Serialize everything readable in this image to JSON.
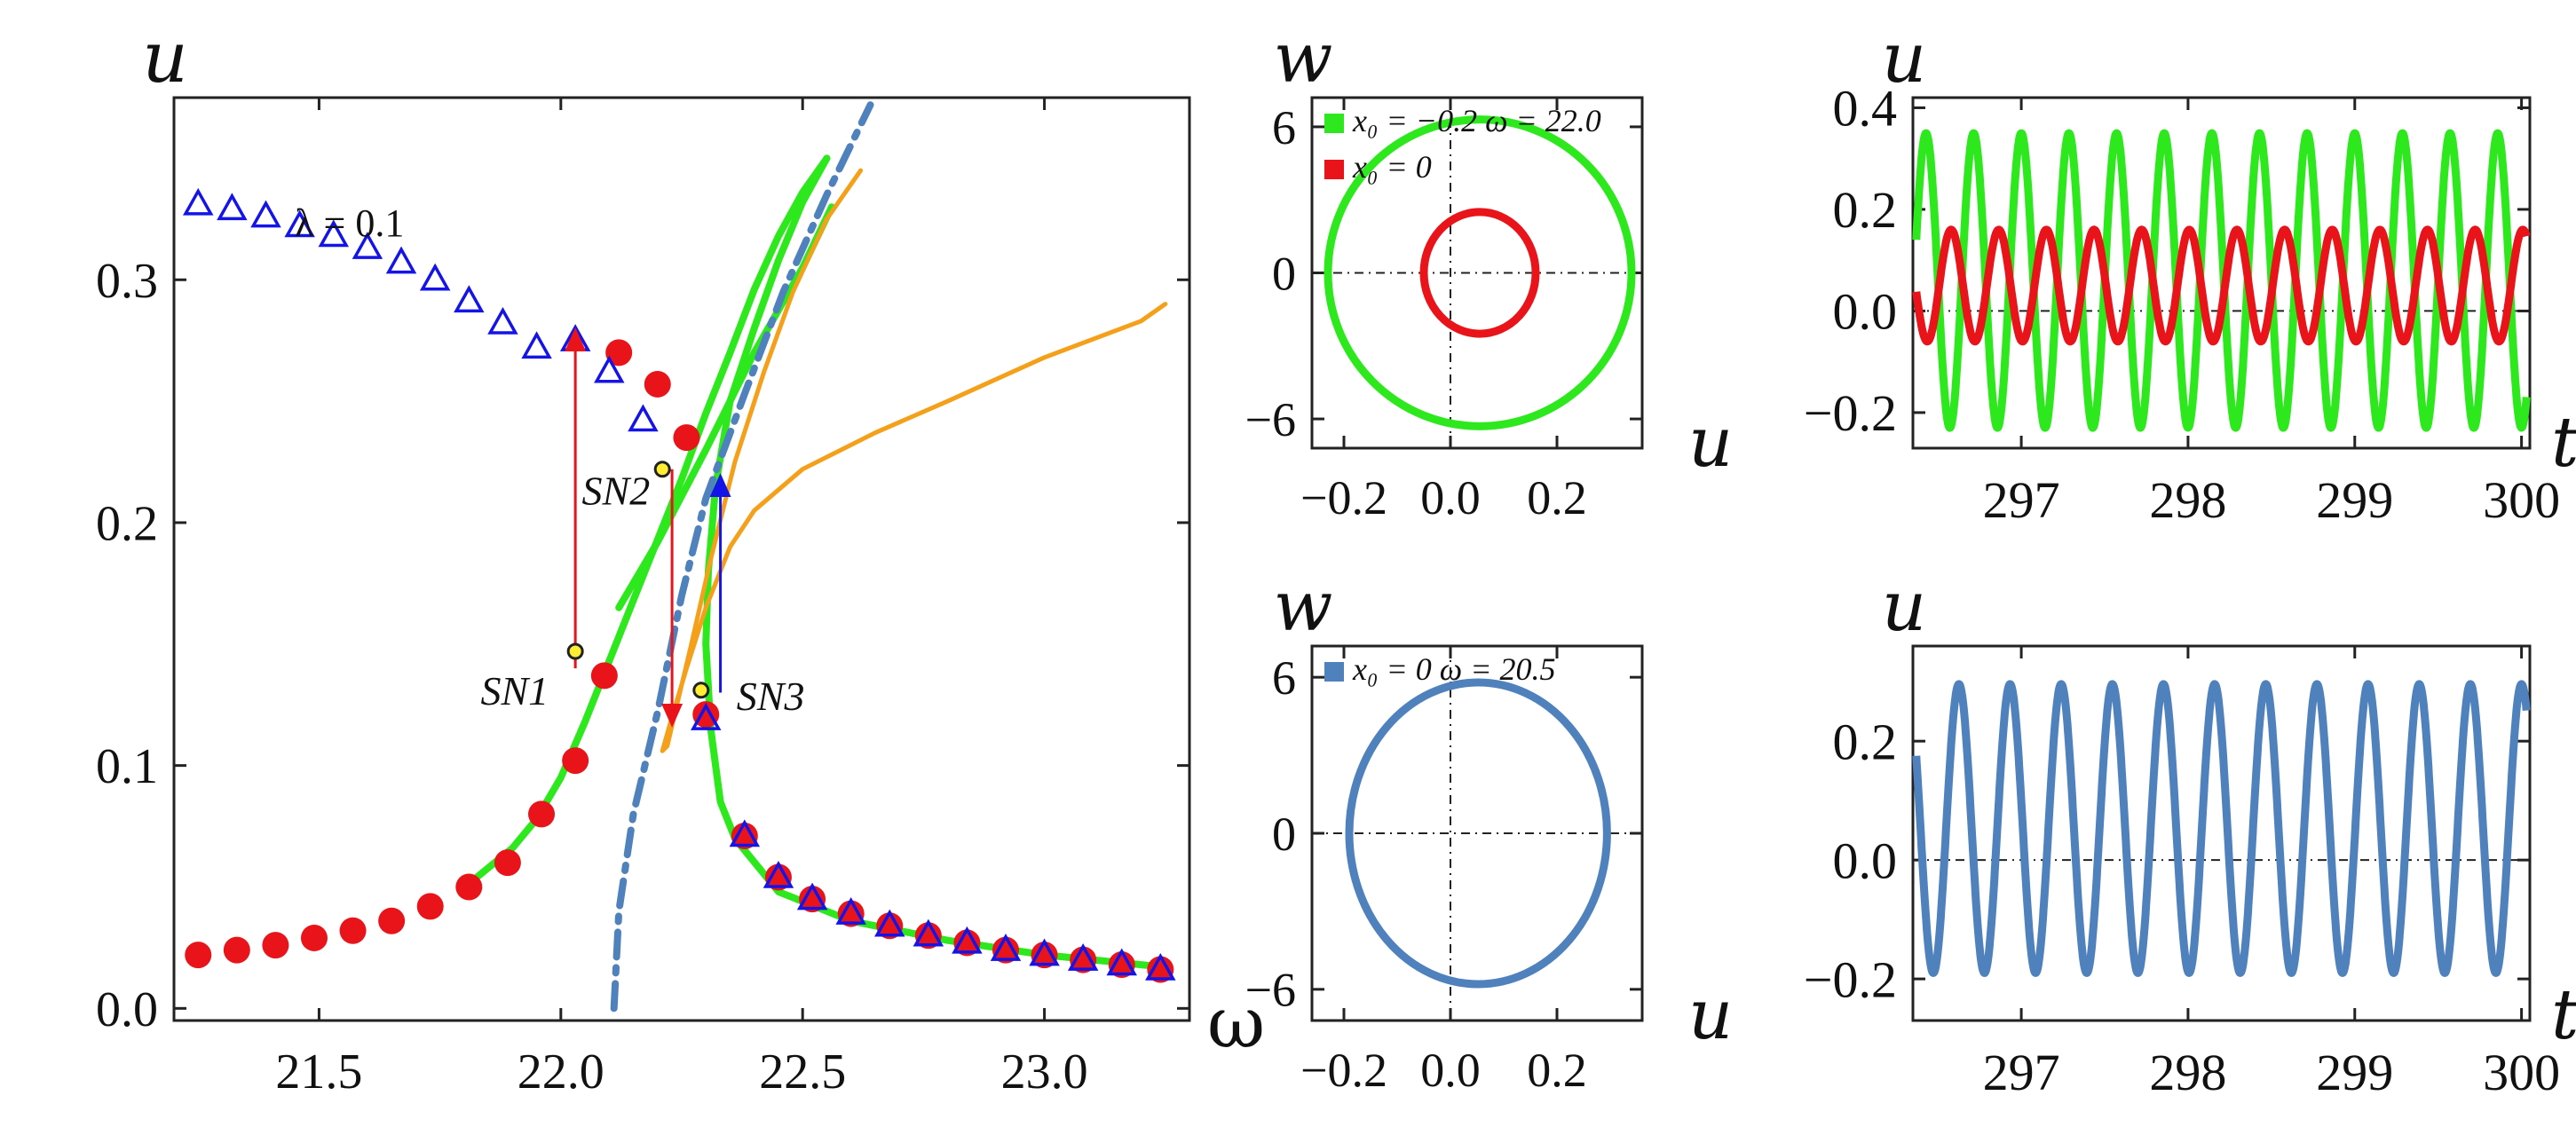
{
  "chart_data": [
    {
      "id": "bifurcation",
      "type": "line",
      "xlabel": "ω",
      "ylabel": "u",
      "xlim": [
        21.2,
        23.3
      ],
      "ylim": [
        -0.005,
        0.375
      ],
      "xticks": [
        21.5,
        22.0,
        22.5,
        23.0
      ],
      "xtick_labels": [
        "21.5",
        "22.0",
        "22.5",
        "23.0"
      ],
      "yticks": [
        0.0,
        0.1,
        0.2,
        0.3
      ],
      "ytick_labels": [
        "0.0",
        "0.1",
        "0.2",
        "0.3"
      ],
      "annotation": "λ = 0.1",
      "colors": {
        "green": "#2ee81e",
        "orange": "#f5a01a",
        "dashed": "#4f81bd",
        "red": "#e8141a",
        "blue": "#1414e8",
        "yellow": "#ffee33"
      },
      "series": [
        {
          "name": "stable-upper-green",
          "style": "green-solid",
          "points": [
            [
              22.12,
              0.165
            ],
            [
              22.2,
              0.192
            ],
            [
              22.3,
              0.23
            ],
            [
              22.4,
              0.27
            ],
            [
              22.5,
              0.305
            ],
            [
              22.56,
              0.33
            ]
          ]
        },
        {
          "name": "stable-lower-green",
          "style": "green-solid",
          "points": [
            [
              21.82,
              0.053
            ],
            [
              21.9,
              0.066
            ],
            [
              21.95,
              0.078
            ],
            [
              22.0,
              0.095
            ],
            [
              22.05,
              0.118
            ],
            [
              22.1,
              0.143
            ],
            [
              22.15,
              0.168
            ],
            [
              22.2,
              0.193
            ],
            [
              22.25,
              0.218
            ],
            [
              22.3,
              0.245
            ],
            [
              22.35,
              0.27
            ],
            [
              22.4,
              0.296
            ],
            [
              22.45,
              0.318
            ],
            [
              22.5,
              0.336
            ],
            [
              22.55,
              0.35
            ]
          ]
        },
        {
          "name": "stable-return-green",
          "style": "green-solid",
          "points": [
            [
              22.55,
              0.35
            ],
            [
              22.5,
              0.332
            ],
            [
              22.45,
              0.308
            ],
            [
              22.4,
              0.28
            ],
            [
              22.35,
              0.25
            ],
            [
              22.32,
              0.215
            ],
            [
              22.305,
              0.18
            ],
            [
              22.3,
              0.15
            ],
            [
              22.31,
              0.115
            ],
            [
              22.33,
              0.085
            ],
            [
              22.36,
              0.07
            ],
            [
              22.45,
              0.048
            ],
            [
              22.6,
              0.036
            ],
            [
              22.8,
              0.028
            ],
            [
              23.0,
              0.022
            ],
            [
              23.2,
              0.018
            ],
            [
              23.25,
              0.017
            ]
          ]
        },
        {
          "name": "unstable-orange-loop",
          "style": "orange-solid",
          "points": [
            [
              22.62,
              0.345
            ],
            [
              22.55,
              0.325
            ],
            [
              22.48,
              0.295
            ],
            [
              22.42,
              0.262
            ],
            [
              22.36,
              0.225
            ],
            [
              22.31,
              0.185
            ],
            [
              22.27,
              0.15
            ],
            [
              22.24,
              0.125
            ],
            [
              22.22,
              0.108
            ],
            [
              22.21,
              0.106
            ],
            [
              22.23,
              0.12
            ],
            [
              22.26,
              0.14
            ],
            [
              22.3,
              0.165
            ],
            [
              22.35,
              0.19
            ],
            [
              22.4,
              0.205
            ],
            [
              22.5,
              0.222
            ],
            [
              22.65,
              0.237
            ],
            [
              22.8,
              0.25
            ],
            [
              23.0,
              0.268
            ],
            [
              23.2,
              0.283
            ],
            [
              23.25,
              0.29
            ]
          ]
        },
        {
          "name": "backbone-dashed",
          "style": "dash-dot",
          "points": [
            [
              22.11,
              0.0
            ],
            [
              22.12,
              0.04
            ],
            [
              22.15,
              0.08
            ],
            [
              22.2,
              0.122
            ],
            [
              22.25,
              0.17
            ],
            [
              22.3,
              0.21
            ],
            [
              22.38,
              0.253
            ],
            [
              22.46,
              0.295
            ],
            [
              22.55,
              0.335
            ],
            [
              22.64,
              0.372
            ]
          ]
        }
      ],
      "red_circles": [
        [
          21.25,
          0.022
        ],
        [
          21.33,
          0.024
        ],
        [
          21.41,
          0.026
        ],
        [
          21.49,
          0.029
        ],
        [
          21.57,
          0.032
        ],
        [
          21.65,
          0.036
        ],
        [
          21.73,
          0.042
        ],
        [
          21.81,
          0.05
        ],
        [
          21.89,
          0.06
        ],
        [
          21.96,
          0.08
        ],
        [
          22.03,
          0.102
        ],
        [
          22.09,
          0.137
        ],
        [
          22.12,
          0.27
        ],
        [
          22.2,
          0.257
        ],
        [
          22.26,
          0.235
        ],
        [
          22.3,
          0.121
        ],
        [
          22.38,
          0.071
        ],
        [
          22.45,
          0.054
        ],
        [
          22.52,
          0.045
        ],
        [
          22.6,
          0.039
        ],
        [
          22.68,
          0.034
        ],
        [
          22.76,
          0.03
        ],
        [
          22.84,
          0.027
        ],
        [
          22.92,
          0.024
        ],
        [
          23.0,
          0.022
        ],
        [
          23.08,
          0.02
        ],
        [
          23.16,
          0.018
        ],
        [
          23.24,
          0.016
        ]
      ],
      "blue_triangles": [
        [
          21.25,
          0.331
        ],
        [
          21.32,
          0.329
        ],
        [
          21.39,
          0.326
        ],
        [
          21.46,
          0.322
        ],
        [
          21.53,
          0.318
        ],
        [
          21.6,
          0.313
        ],
        [
          21.67,
          0.307
        ],
        [
          21.74,
          0.3
        ],
        [
          21.81,
          0.291
        ],
        [
          21.88,
          0.282
        ],
        [
          21.95,
          0.272
        ],
        [
          22.03,
          0.275
        ],
        [
          22.1,
          0.262
        ],
        [
          22.17,
          0.242
        ],
        [
          22.3,
          0.119
        ],
        [
          22.38,
          0.071
        ],
        [
          22.45,
          0.054
        ],
        [
          22.52,
          0.045
        ],
        [
          22.6,
          0.039
        ],
        [
          22.68,
          0.034
        ],
        [
          22.76,
          0.03
        ],
        [
          22.84,
          0.027
        ],
        [
          22.92,
          0.024
        ],
        [
          23.0,
          0.022
        ],
        [
          23.08,
          0.02
        ],
        [
          23.16,
          0.018
        ],
        [
          23.24,
          0.016
        ]
      ],
      "bifurcation_points": [
        {
          "label": "SN1",
          "x": 22.03,
          "y": 0.147
        },
        {
          "label": "SN2",
          "x": 22.21,
          "y": 0.222
        },
        {
          "label": "SN3",
          "x": 22.29,
          "y": 0.131
        }
      ],
      "arrows": [
        {
          "color": "red",
          "x": 22.03,
          "from": 0.14,
          "to": 0.276
        },
        {
          "color": "red",
          "x": 22.23,
          "from": 0.222,
          "to": 0.12
        },
        {
          "color": "blue",
          "x": 22.33,
          "from": 0.13,
          "to": 0.216
        }
      ]
    },
    {
      "id": "phase-top",
      "type": "line",
      "xlabel": "u",
      "ylabel": "w",
      "xlim": [
        -0.26,
        0.36
      ],
      "ylim": [
        -7.2,
        7.2
      ],
      "xticks": [
        -0.2,
        0.0,
        0.2
      ],
      "xtick_labels": [
        "−0.2",
        "0.0",
        "0.2"
      ],
      "yticks": [
        -6,
        0,
        6
      ],
      "ytick_labels": [
        "−6",
        "0",
        "6"
      ],
      "legend": [
        {
          "label": "x₀ = −0.2 ω = 22.0",
          "color": "#2ee81e"
        },
        {
          "label": "x₀ = 0",
          "color": "#e8141a"
        }
      ],
      "series": [
        {
          "name": "green-orbit",
          "color": "#2ee81e",
          "cx": 0.055,
          "cy": 0.0,
          "rx": 0.285,
          "ry": 6.3
        },
        {
          "name": "red-orbit",
          "color": "#e8141a",
          "cx": 0.055,
          "cy": 0.0,
          "rx": 0.105,
          "ry": 2.5
        }
      ]
    },
    {
      "id": "time-top",
      "type": "line",
      "xlabel": "t",
      "ylabel": "u",
      "xlim": [
        296.35,
        300.05
      ],
      "ylim": [
        -0.27,
        0.42
      ],
      "xticks": [
        297,
        298,
        299,
        300
      ],
      "xtick_labels": [
        "297",
        "298",
        "299",
        "300"
      ],
      "yticks": [
        -0.2,
        0.0,
        0.2,
        0.4
      ],
      "ytick_labels": [
        "−0.2",
        "0.0",
        "0.2",
        "0.4"
      ],
      "series": [
        {
          "name": "green-signal",
          "color": "#2ee81e",
          "mean": 0.06,
          "amp": 0.29,
          "freq": 3.5,
          "phase": 4.71
        },
        {
          "name": "red-signal",
          "color": "#e8141a",
          "mean": 0.05,
          "amp": 0.11,
          "freq": 3.5,
          "phase": 1.4
        }
      ]
    },
    {
      "id": "phase-bottom",
      "type": "line",
      "xlabel": "u",
      "ylabel": "w",
      "xlim": [
        -0.26,
        0.36
      ],
      "ylim": [
        -7.2,
        7.2
      ],
      "xticks": [
        -0.2,
        0.0,
        0.2
      ],
      "xtick_labels": [
        "−0.2",
        "0.0",
        "0.2"
      ],
      "yticks": [
        -6,
        0,
        6
      ],
      "ytick_labels": [
        "−6",
        "0",
        "6"
      ],
      "legend": [
        {
          "label": "x₀ = 0 ω = 20.5",
          "color": "#4f81bd"
        }
      ],
      "series": [
        {
          "name": "blue-orbit",
          "color": "#4f81bd",
          "cx": 0.052,
          "cy": 0.0,
          "rx": 0.242,
          "ry": 5.8
        }
      ]
    },
    {
      "id": "time-bottom",
      "type": "line",
      "xlabel": "t",
      "ylabel": "u",
      "xlim": [
        296.35,
        300.05
      ],
      "ylim": [
        -0.27,
        0.36
      ],
      "xticks": [
        297,
        298,
        299,
        300
      ],
      "xtick_labels": [
        "297",
        "298",
        "299",
        "300"
      ],
      "yticks": [
        -0.2,
        0.0,
        0.2
      ],
      "ytick_labels": [
        "−0.2",
        "0.0",
        "0.2"
      ],
      "series": [
        {
          "name": "blue-signal",
          "color": "#4f81bd",
          "mean": 0.053,
          "amp": 0.243,
          "freq": 3.26,
          "phase": 1.57
        }
      ]
    }
  ]
}
